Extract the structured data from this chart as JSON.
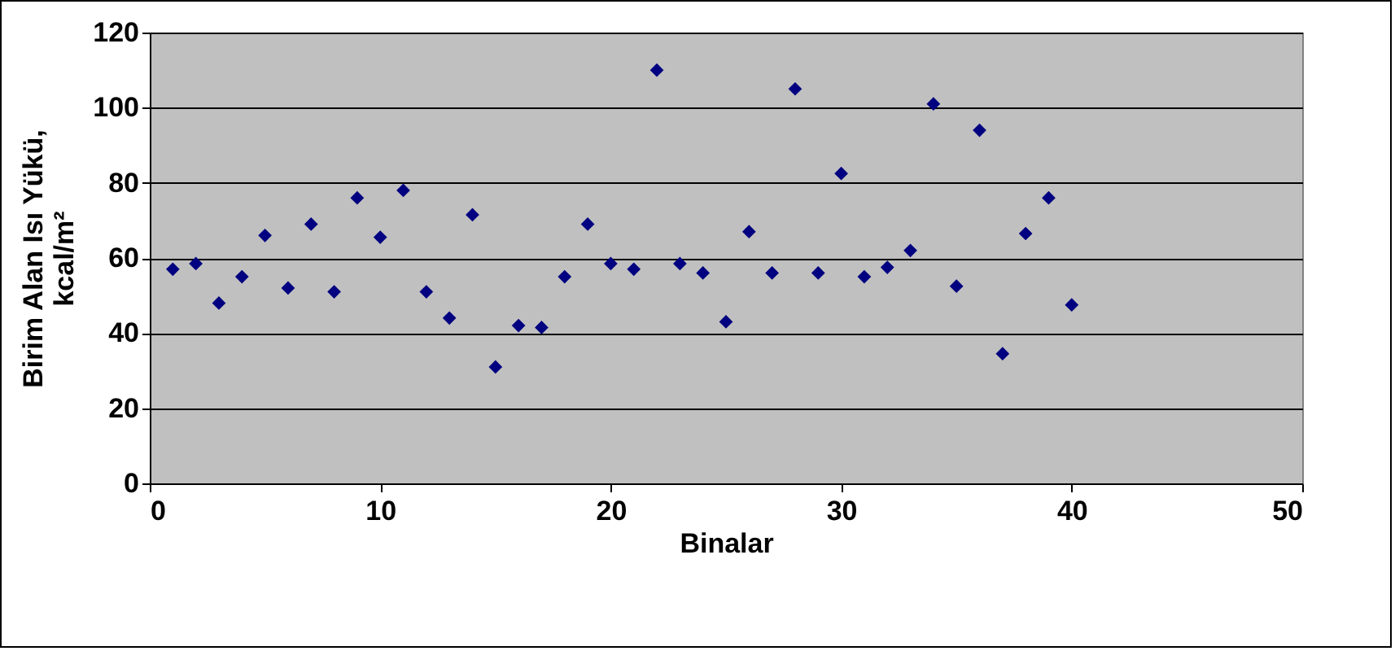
{
  "chart_data": {
    "type": "scatter",
    "xlabel": "Binalar",
    "ylabel": "Birim Alan Isı Yükü, kcal/m²",
    "x": [
      1,
      2,
      3,
      4,
      5,
      6,
      7,
      8,
      9,
      10,
      11,
      12,
      13,
      14,
      15,
      16,
      17,
      18,
      19,
      20,
      21,
      22,
      23,
      24,
      25,
      26,
      27,
      28,
      29,
      30,
      31,
      32,
      33,
      34,
      35,
      36,
      37,
      38,
      39,
      40
    ],
    "series": [
      {
        "color": "#000080",
        "values": [
          57,
          58.5,
          48,
          55,
          66,
          52,
          69,
          51,
          76,
          65.5,
          78,
          51,
          44,
          71.5,
          31,
          42,
          41.5,
          55,
          69,
          58.5,
          57,
          110,
          58.5,
          56,
          43,
          67,
          56,
          105,
          56,
          82.5,
          55,
          57.5,
          62,
          101,
          52.5,
          94,
          34.5,
          66.5,
          76,
          47.5
        ]
      }
    ],
    "xlim": [
      0,
      50
    ],
    "xticks": [
      0,
      10,
      20,
      30,
      40,
      50
    ],
    "ylim": [
      0,
      120
    ],
    "yticks": [
      0,
      20,
      40,
      60,
      80,
      100,
      120
    ],
    "grid": "y",
    "marker": "diamond",
    "legend": false
  }
}
